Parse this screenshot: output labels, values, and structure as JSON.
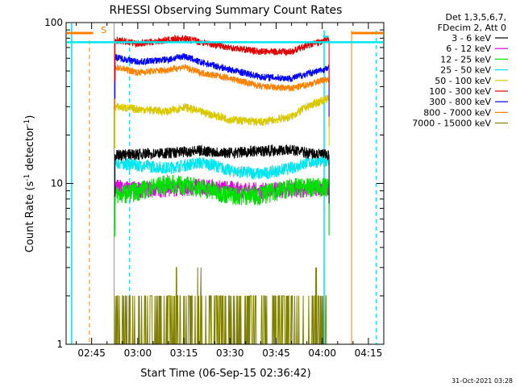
{
  "chart_data": {
    "type": "line",
    "title": "RHESSI Observing Summary Count Rates",
    "xlabel": "Start Time (06-Sep-15 02:36:42)",
    "ylabel": "Count Rate (s⁻¹ detector⁻¹)",
    "ylabel_main": "Count Rate (s",
    "ylabel_sup1": "-1",
    "ylabel_mid": " detector",
    "ylabel_sup2": "-1",
    "ylabel_end": ")",
    "x_range_min": [
      156.7,
      260
    ],
    "x_ticks": [
      {
        "label": "02:45",
        "min": 165
      },
      {
        "label": "03:00",
        "min": 180
      },
      {
        "label": "03:15",
        "min": 195
      },
      {
        "label": "03:30",
        "min": 210
      },
      {
        "label": "03:45",
        "min": 225
      },
      {
        "label": "04:00",
        "min": 240
      },
      {
        "label": "04:15",
        "min": 255
      }
    ],
    "y_scale": "log",
    "ylim": [
      1,
      100
    ],
    "y_ticks": [
      {
        "label": "1",
        "value": 1
      },
      {
        "label": "10",
        "value": 10
      },
      {
        "label": "100",
        "value": 100
      }
    ],
    "legend_header": [
      "Det 1,3,5,6,7,",
      "FDecim 2, Att 0"
    ],
    "legend_position": "right",
    "data_start_min": 172.6,
    "data_end_min": 242.2,
    "series": [
      {
        "name": "3 - 6 keV",
        "color": "#000000",
        "noise": 0.08,
        "times": [
          172.6,
          180,
          190,
          200,
          210,
          220,
          230,
          235,
          242.2
        ],
        "values": [
          15,
          15.2,
          15.5,
          16,
          15.5,
          16,
          16.2,
          15.5,
          15
        ]
      },
      {
        "name": "6 - 12 keV",
        "color": "#e000e0",
        "noise": 0.12,
        "times": [
          172.6,
          180,
          190,
          200,
          210,
          220,
          230,
          235,
          242.2
        ],
        "values": [
          9.5,
          9.2,
          9.3,
          9.6,
          9.3,
          9.0,
          9.2,
          9.3,
          9.5
        ]
      },
      {
        "name": "12 - 25 keV",
        "color": "#00e000",
        "noise": 0.14,
        "times": [
          172.6,
          180,
          190,
          200,
          210,
          220,
          230,
          235,
          242.2
        ],
        "values": [
          8.5,
          9,
          10,
          9.5,
          8.5,
          8.5,
          9.5,
          9.5,
          9.5
        ]
      },
      {
        "name": "25 - 50 keV",
        "color": "#00e5ee",
        "noise": 0.09,
        "times": [
          172.6,
          180,
          190,
          200,
          205,
          210,
          220,
          230,
          235,
          242.2
        ],
        "values": [
          13.5,
          13,
          12.5,
          13.5,
          13,
          12,
          11.5,
          12.5,
          13.5,
          14
        ]
      },
      {
        "name": "50 - 100 keV",
        "color": "#d9c800",
        "noise": 0.06,
        "times": [
          172.6,
          180,
          190,
          195,
          200,
          210,
          220,
          230,
          235,
          242.2
        ],
        "values": [
          30,
          29,
          28,
          30,
          28,
          25,
          24,
          26,
          30,
          34
        ]
      },
      {
        "name": "100 - 300 keV",
        "color": "#e00000",
        "noise": 0.05,
        "times": [
          172.6,
          180,
          190,
          195,
          200,
          210,
          220,
          230,
          235,
          242.2
        ],
        "values": [
          78,
          74,
          78,
          80,
          76,
          70,
          66,
          66,
          72,
          78
        ]
      },
      {
        "name": "300 - 800 keV",
        "color": "#0000ff",
        "noise": 0.05,
        "times": [
          172.6,
          180,
          190,
          195,
          200,
          210,
          220,
          230,
          235,
          242.2
        ],
        "values": [
          61,
          57,
          59,
          62,
          57,
          51,
          46,
          45,
          48,
          52
        ]
      },
      {
        "name": "800 - 7000 keV",
        "color": "#ff8000",
        "noise": 0.05,
        "times": [
          172.6,
          180,
          190,
          195,
          200,
          210,
          220,
          230,
          235,
          242.2
        ],
        "values": [
          53,
          49,
          51,
          53,
          49,
          45,
          40,
          39,
          41,
          45
        ]
      },
      {
        "name": "7000 - 15000 keV",
        "color": "#808000",
        "noise": 0,
        "discrete": true,
        "times": [
          172.6,
          242.2
        ],
        "values": [
          1,
          1
        ]
      }
    ],
    "annotations": [
      {
        "kind": "saa-flag",
        "label": "S",
        "color": "#ff8000"
      }
    ],
    "timestamp": "31-Oct-2021 03:28"
  }
}
